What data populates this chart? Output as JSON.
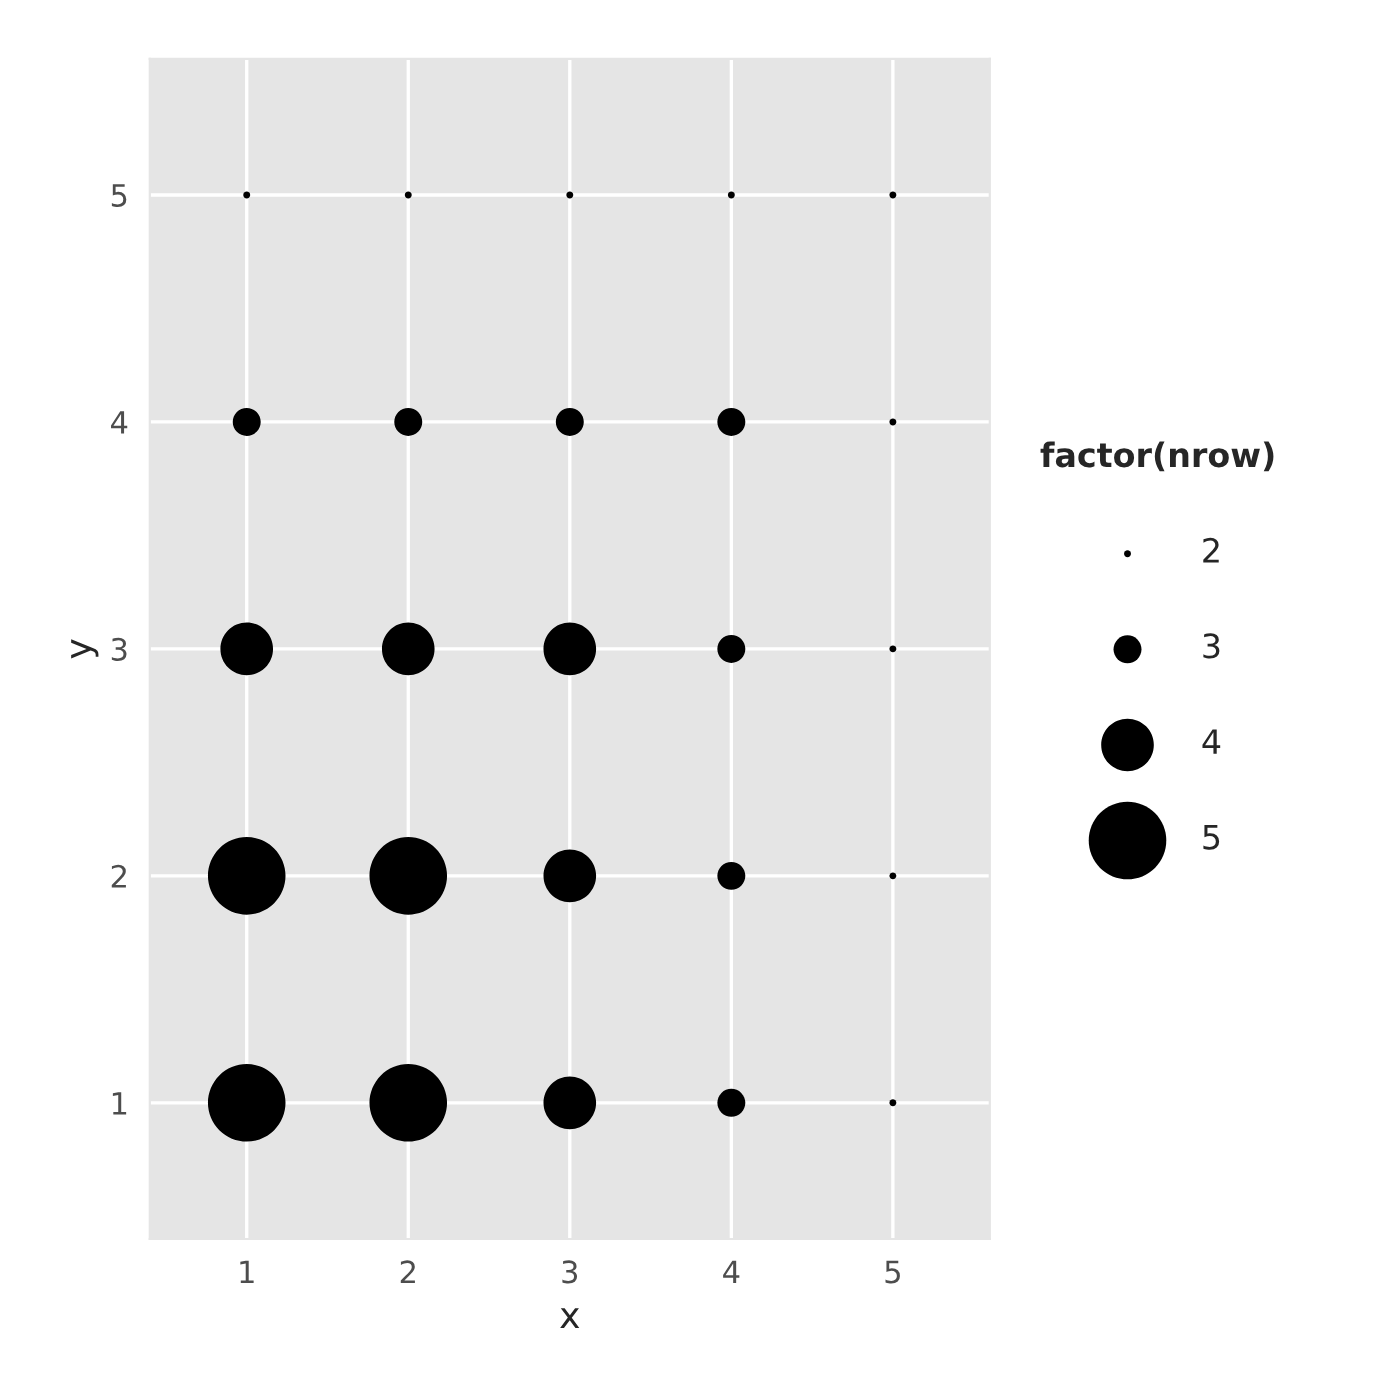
{
  "chart_data": {
    "type": "bubble",
    "xlabel": "x",
    "ylabel": "y",
    "legend_title": "factor(nrow)",
    "series": [
      {
        "name": "2",
        "color": "#000000",
        "x": [
          1,
          2,
          3,
          4,
          5,
          5,
          5,
          5,
          5
        ],
        "values": [
          5,
          5,
          5,
          5,
          5,
          4,
          3,
          2,
          1
        ],
        "sizes": [
          0.008,
          0.008,
          0.008,
          0.008,
          0.008,
          0.008,
          0.008,
          0.008,
          0.008
        ]
      },
      {
        "name": "3",
        "color": "#000000",
        "x": [
          1,
          2,
          3,
          4,
          4,
          4,
          4
        ],
        "values": [
          4,
          4,
          4,
          4,
          3,
          2,
          1
        ],
        "sizes": [
          0.13,
          0.13,
          0.13,
          0.13,
          0.13,
          0.13,
          0.13
        ]
      },
      {
        "name": "4",
        "color": "#000000",
        "x": [
          1,
          2,
          3,
          3,
          3
        ],
        "values": [
          3,
          3,
          3,
          2,
          1
        ],
        "sizes": [
          0.46,
          0.46,
          0.46,
          0.46,
          0.46
        ]
      },
      {
        "name": "5",
        "color": "#000000",
        "x": [
          1,
          2,
          1,
          2
        ],
        "values": [
          2,
          2,
          1,
          1
        ],
        "sizes": [
          1,
          1,
          1,
          1
        ]
      }
    ],
    "xlim": [
      0.4,
      5.6
    ],
    "ylim": [
      0.4,
      5.6
    ],
    "xticks": [
      1,
      2,
      3,
      4,
      5
    ],
    "yticks": [
      1,
      2,
      3,
      4,
      5
    ],
    "grid": true,
    "legend": "right",
    "marker": "circle"
  }
}
